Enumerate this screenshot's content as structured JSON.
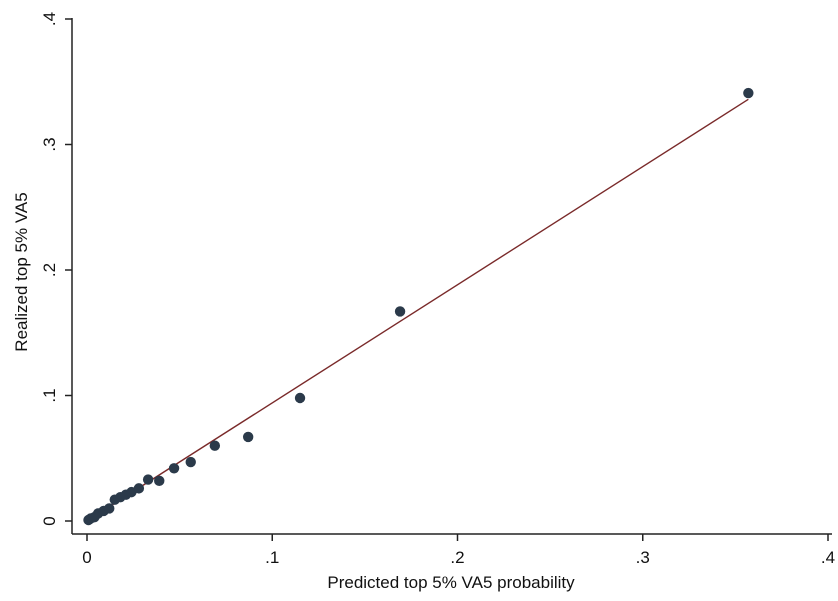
{
  "chart_data": {
    "type": "scatter",
    "title": "",
    "xlabel": "Predicted top 5% VA5 probability",
    "ylabel": "Realized top 5% VA5",
    "xlim": [
      0,
      0.4
    ],
    "ylim": [
      0,
      0.4
    ],
    "x_ticks": [
      {
        "value": 0,
        "label": "0"
      },
      {
        "value": 0.1,
        "label": ".1"
      },
      {
        "value": 0.2,
        "label": ".2"
      },
      {
        "value": 0.3,
        "label": ".3"
      },
      {
        "value": 0.4,
        "label": ".4"
      }
    ],
    "y_ticks": [
      {
        "value": 0,
        "label": "0"
      },
      {
        "value": 0.1,
        "label": ".1"
      },
      {
        "value": 0.2,
        "label": ".2"
      },
      {
        "value": 0.3,
        "label": ".3"
      },
      {
        "value": 0.4,
        "label": ".4"
      }
    ],
    "grid": false,
    "series": [
      {
        "kind": "points",
        "color": "#2b3a4a",
        "points": [
          {
            "x": 0.0008,
            "y": 0.0008
          },
          {
            "x": 0.002,
            "y": 0.002
          },
          {
            "x": 0.004,
            "y": 0.003
          },
          {
            "x": 0.006,
            "y": 0.006
          },
          {
            "x": 0.009,
            "y": 0.008
          },
          {
            "x": 0.012,
            "y": 0.01
          },
          {
            "x": 0.015,
            "y": 0.017
          },
          {
            "x": 0.018,
            "y": 0.019
          },
          {
            "x": 0.021,
            "y": 0.021
          },
          {
            "x": 0.024,
            "y": 0.023
          },
          {
            "x": 0.028,
            "y": 0.026
          },
          {
            "x": 0.033,
            "y": 0.033
          },
          {
            "x": 0.039,
            "y": 0.032
          },
          {
            "x": 0.047,
            "y": 0.042
          },
          {
            "x": 0.056,
            "y": 0.047
          },
          {
            "x": 0.069,
            "y": 0.06
          },
          {
            "x": 0.087,
            "y": 0.067
          },
          {
            "x": 0.115,
            "y": 0.098
          },
          {
            "x": 0.169,
            "y": 0.167
          },
          {
            "x": 0.357,
            "y": 0.341
          }
        ]
      },
      {
        "kind": "fit-line",
        "color": "#7a2a2a",
        "from": {
          "x": 0,
          "y": 0
        },
        "to": {
          "x": 0.357,
          "y": 0.336
        }
      }
    ]
  }
}
